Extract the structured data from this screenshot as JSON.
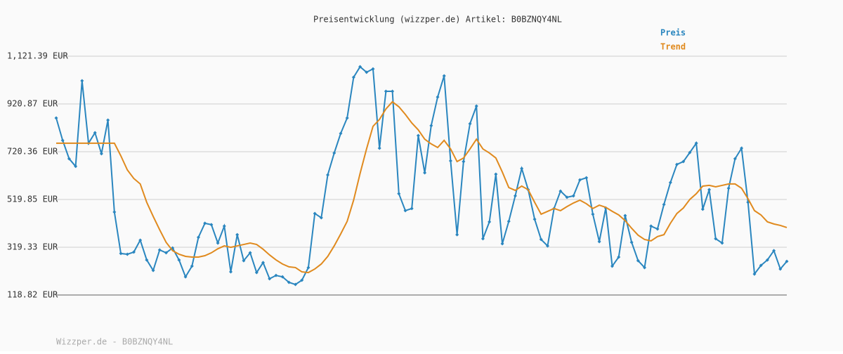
{
  "chart_data": {
    "type": "line",
    "title": "Preisentwicklung (wizzper.de) Artikel: B0BZNQY4NL",
    "footer": "Wizzper.de - B0BZNQY4NL",
    "ylim": [
      118.82,
      1121.39
    ],
    "yticks": [
      {
        "value": 118.82,
        "label": "118.82 EUR"
      },
      {
        "value": 319.33,
        "label": "319.33 EUR"
      },
      {
        "value": 519.85,
        "label": "519.85 EUR"
      },
      {
        "value": 720.36,
        "label": "720.36 EUR"
      },
      {
        "value": 920.87,
        "label": "920.87 EUR"
      },
      {
        "value": 1121.39,
        "label": "1,121.39 EUR"
      }
    ],
    "grid": true,
    "legend": "top-right",
    "series": [
      {
        "name": "Preis",
        "color": "#2a86bf",
        "markers": true,
        "values": [
          862,
          768,
          691,
          659,
          1018,
          756,
          800,
          712,
          853,
          467,
          293,
          290,
          299,
          349,
          266,
          222,
          308,
          296,
          316,
          266,
          195,
          240,
          361,
          420,
          414,
          337,
          408,
          216,
          372,
          263,
          296,
          213,
          255,
          187,
          201,
          195,
          172,
          163,
          181,
          234,
          461,
          443,
          623,
          715,
          797,
          862,
          1033,
          1077,
          1054,
          1068,
          735,
          974,
          974,
          544,
          473,
          482,
          788,
          632,
          830,
          950,
          1039,
          682,
          372,
          679,
          838,
          912,
          355,
          426,
          626,
          334,
          428,
          535,
          650,
          561,
          437,
          352,
          325,
          482,
          555,
          529,
          535,
          602,
          611,
          458,
          343,
          484,
          240,
          278,
          452,
          340,
          263,
          234,
          408,
          396,
          499,
          591,
          667,
          679,
          717,
          756,
          479,
          561,
          355,
          337,
          567,
          691,
          735,
          508,
          207,
          243,
          266,
          305,
          228,
          260
        ]
      },
      {
        "name": "Trend",
        "color": "#e08a1e",
        "markers": false,
        "values": [
          756,
          756,
          756,
          756,
          756,
          756,
          756,
          756,
          756,
          756,
          703,
          644,
          608,
          585,
          508,
          449,
          393,
          340,
          305,
          290,
          281,
          278,
          278,
          284,
          296,
          313,
          325,
          319,
          325,
          331,
          337,
          331,
          311,
          287,
          266,
          249,
          237,
          234,
          216,
          213,
          228,
          249,
          281,
          325,
          375,
          428,
          517,
          629,
          732,
          827,
          856,
          900,
          930,
          909,
          877,
          841,
          812,
          773,
          753,
          738,
          768,
          732,
          679,
          694,
          732,
          773,
          732,
          715,
          694,
          635,
          570,
          558,
          576,
          561,
          508,
          458,
          470,
          482,
          473,
          490,
          505,
          517,
          502,
          482,
          496,
          487,
          470,
          455,
          431,
          399,
          370,
          352,
          346,
          364,
          372,
          420,
          461,
          484,
          520,
          544,
          576,
          579,
          573,
          579,
          585,
          585,
          567,
          523,
          473,
          455,
          426,
          417,
          411,
          402
        ]
      }
    ]
  }
}
